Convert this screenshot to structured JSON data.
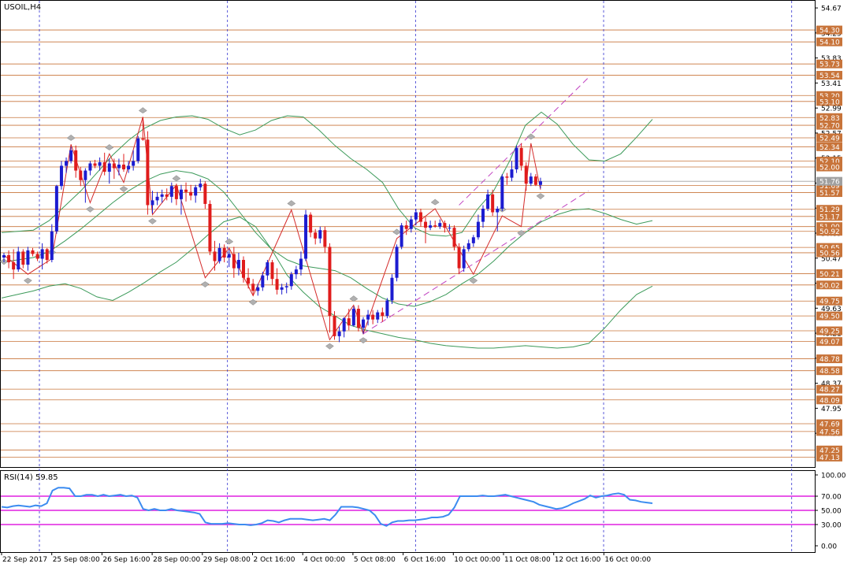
{
  "window": {
    "symbol_label": "USOIL,H4",
    "indicator_label": "RSI(14) 59.85"
  },
  "colors": {
    "bull": "#1c1cd0",
    "bear": "#e01c1c",
    "level_line": "#c8743a",
    "level_tag": "#c8743a",
    "bollinger": "#3c9a5a",
    "zigzag": "#d42a2a",
    "channel": "#c040c0",
    "rsi_line": "#3c8cf0",
    "rsi_level": "#e020e0",
    "period_sep": "#3030d0",
    "axis": "#000000"
  },
  "chart_data": [
    {
      "type": "candlestick",
      "title": "USOIL,H4",
      "ylim": [
        46.95,
        54.79
      ],
      "x_tick_labels": [
        "22 Sep 2017",
        "25 Sep 08:00",
        "26 Sep 16:00",
        "28 Sep 00:00",
        "29 Sep 08:00",
        "2 Oct 16:00",
        "4 Oct 00:00",
        "5 Oct 08:00",
        "6 Oct 16:00",
        "10 Oct 00:00",
        "11 Oct 08:00",
        "12 Oct 16:00",
        "16 Oct 00:00"
      ],
      "y_tick_labels": [
        "54.67",
        "54.25",
        "53.83",
        "53.41",
        "52.99",
        "52.57",
        "52.15",
        "51.73",
        "51.31",
        "50.89",
        "50.47",
        "50.05",
        "49.63",
        "49.21",
        "48.79",
        "48.37",
        "47.95",
        "47.53"
      ],
      "price_level_tags": [
        "54.30",
        "54.10",
        "53.73",
        "53.54",
        "53.20",
        "53.10",
        "52.83",
        "52.70",
        "52.49",
        "52.34",
        "52.10",
        "52.00",
        "51.69",
        "51.57",
        "51.29",
        "51.17",
        "51.00",
        "50.92",
        "50.65",
        "50.56",
        "50.21",
        "50.02",
        "49.75",
        "49.50",
        "49.25",
        "49.07",
        "48.78",
        "48.58",
        "48.27",
        "48.09",
        "47.69",
        "47.56",
        "47.25",
        "47.13"
      ],
      "current_price": "51.76",
      "candles": [
        [
          50.48,
          50.56,
          50.4,
          50.52
        ],
        [
          50.52,
          50.6,
          50.3,
          50.4
        ],
        [
          50.4,
          50.62,
          50.12,
          50.28
        ],
        [
          50.28,
          50.66,
          50.24,
          50.58
        ],
        [
          50.58,
          50.62,
          50.3,
          50.36
        ],
        [
          50.36,
          50.66,
          50.26,
          50.6
        ],
        [
          50.6,
          50.64,
          50.5,
          50.54
        ],
        [
          50.54,
          50.58,
          50.42,
          50.46
        ],
        [
          50.46,
          50.72,
          50.28,
          50.62
        ],
        [
          50.62,
          50.64,
          50.38,
          50.44
        ],
        [
          50.44,
          51.04,
          50.4,
          50.92
        ],
        [
          50.92,
          51.7,
          50.88,
          51.68
        ],
        [
          51.68,
          52.1,
          51.62,
          52.02
        ],
        [
          52.02,
          52.16,
          51.9,
          52.1
        ],
        [
          52.1,
          52.34,
          52.06,
          52.28
        ],
        [
          52.28,
          52.36,
          51.82,
          51.94
        ],
        [
          51.94,
          52.0,
          51.68,
          51.78
        ],
        [
          51.78,
          51.98,
          51.4,
          51.94
        ],
        [
          51.94,
          52.1,
          51.86,
          52.06
        ],
        [
          52.06,
          52.12,
          51.98,
          52.02
        ],
        [
          52.02,
          52.16,
          51.94,
          52.08
        ],
        [
          52.08,
          52.24,
          51.86,
          51.92
        ],
        [
          51.92,
          52.14,
          51.72,
          52.06
        ],
        [
          52.06,
          52.14,
          51.8,
          51.98
        ],
        [
          51.98,
          52.14,
          51.86,
          52.04
        ],
        [
          52.04,
          52.22,
          51.92,
          51.96
        ],
        [
          51.96,
          52.1,
          51.9,
          52.02
        ],
        [
          52.02,
          52.28,
          51.94,
          52.1
        ],
        [
          52.1,
          52.52,
          52.06,
          52.48
        ],
        [
          52.48,
          52.84,
          52.44,
          52.46
        ],
        [
          52.46,
          52.6,
          51.2,
          51.36
        ],
        [
          51.36,
          51.6,
          51.22,
          51.44
        ],
        [
          51.44,
          51.58,
          51.36,
          51.5
        ],
        [
          51.5,
          51.62,
          51.4,
          51.54
        ],
        [
          51.54,
          51.64,
          51.44,
          51.5
        ],
        [
          51.5,
          51.74,
          51.4,
          51.68
        ],
        [
          51.68,
          51.72,
          51.36,
          51.46
        ],
        [
          51.46,
          51.7,
          51.2,
          51.62
        ],
        [
          51.62,
          51.74,
          51.42,
          51.58
        ],
        [
          51.58,
          51.7,
          51.44,
          51.52
        ],
        [
          51.52,
          51.7,
          51.4,
          51.66
        ],
        [
          51.66,
          51.8,
          51.6,
          51.72
        ],
        [
          51.72,
          51.76,
          51.3,
          51.38
        ],
        [
          51.38,
          51.44,
          50.52,
          50.58
        ],
        [
          50.58,
          50.76,
          50.26,
          50.42
        ],
        [
          50.42,
          50.72,
          50.38,
          50.64
        ],
        [
          50.64,
          50.7,
          50.4,
          50.48
        ],
        [
          50.48,
          50.62,
          50.32,
          50.54
        ],
        [
          50.54,
          50.66,
          50.14,
          50.3
        ],
        [
          50.3,
          50.56,
          50.18,
          50.44
        ],
        [
          50.44,
          50.5,
          50.06,
          50.14
        ],
        [
          50.14,
          50.3,
          49.96,
          50.04
        ],
        [
          50.04,
          50.12,
          49.84,
          49.92
        ],
        [
          49.92,
          50.04,
          49.84,
          49.98
        ],
        [
          49.98,
          50.24,
          49.92,
          50.18
        ],
        [
          50.18,
          50.44,
          50.1,
          50.4
        ],
        [
          50.4,
          50.44,
          50.02,
          50.12
        ],
        [
          50.12,
          50.3,
          49.86,
          49.94
        ],
        [
          49.94,
          50.04,
          49.86,
          49.98
        ],
        [
          49.98,
          50.06,
          49.88,
          50.0
        ],
        [
          50.0,
          50.24,
          49.94,
          50.2
        ],
        [
          50.2,
          50.34,
          50.12,
          50.28
        ],
        [
          50.28,
          50.58,
          50.18,
          50.46
        ],
        [
          50.46,
          51.28,
          50.42,
          51.2
        ],
        [
          51.2,
          51.24,
          50.82,
          50.9
        ],
        [
          50.9,
          50.96,
          50.7,
          50.8
        ],
        [
          50.8,
          51.0,
          50.72,
          50.94
        ],
        [
          50.94,
          51.0,
          50.56,
          50.66
        ],
        [
          50.66,
          50.72,
          49.22,
          49.5
        ],
        [
          49.5,
          49.58,
          49.1,
          49.16
        ],
        [
          49.16,
          49.32,
          49.06,
          49.24
        ],
        [
          49.24,
          49.48,
          49.14,
          49.46
        ],
        [
          49.46,
          49.62,
          49.26,
          49.34
        ],
        [
          49.34,
          49.66,
          49.32,
          49.62
        ],
        [
          49.62,
          49.68,
          49.24,
          49.3
        ],
        [
          49.3,
          49.48,
          49.2,
          49.44
        ],
        [
          49.44,
          49.6,
          49.34,
          49.52
        ],
        [
          49.52,
          49.6,
          49.36,
          49.44
        ],
        [
          49.44,
          49.6,
          49.38,
          49.56
        ],
        [
          49.56,
          49.64,
          49.4,
          49.5
        ],
        [
          49.5,
          49.8,
          49.46,
          49.76
        ],
        [
          49.76,
          50.2,
          49.7,
          50.14
        ],
        [
          50.14,
          50.7,
          50.08,
          50.66
        ],
        [
          50.66,
          51.06,
          50.62,
          51.02
        ],
        [
          51.02,
          51.1,
          50.86,
          50.96
        ],
        [
          50.96,
          51.18,
          50.9,
          51.12
        ],
        [
          51.12,
          51.3,
          51.02,
          51.24
        ],
        [
          51.24,
          51.3,
          51.0,
          51.08
        ],
        [
          51.08,
          51.16,
          50.72,
          50.98
        ],
        [
          50.98,
          51.1,
          50.94,
          51.02
        ],
        [
          51.02,
          51.1,
          50.98,
          51.0
        ],
        [
          51.0,
          51.12,
          50.96,
          51.06
        ],
        [
          51.06,
          51.1,
          50.9,
          50.98
        ],
        [
          50.98,
          51.04,
          50.92,
          50.98
        ],
        [
          50.98,
          51.02,
          50.6,
          50.66
        ],
        [
          50.66,
          50.72,
          50.2,
          50.3
        ],
        [
          50.3,
          50.68,
          50.24,
          50.62
        ],
        [
          50.62,
          50.78,
          50.58,
          50.72
        ],
        [
          50.72,
          50.86,
          50.66,
          50.82
        ],
        [
          50.82,
          51.2,
          50.78,
          51.08
        ],
        [
          51.08,
          51.36,
          50.98,
          51.3
        ],
        [
          51.3,
          51.62,
          51.26,
          51.54
        ],
        [
          51.54,
          51.62,
          51.18,
          51.24
        ],
        [
          51.24,
          51.34,
          50.92,
          51.3
        ],
        [
          51.3,
          51.88,
          51.26,
          51.84
        ],
        [
          51.84,
          51.9,
          51.7,
          51.82
        ],
        [
          51.82,
          52.1,
          51.76,
          51.96
        ],
        [
          51.96,
          52.36,
          51.9,
          52.32
        ],
        [
          52.32,
          52.4,
          51.94,
          52.02
        ],
        [
          52.02,
          52.08,
          51.6,
          51.72
        ],
        [
          51.72,
          51.9,
          51.68,
          51.84
        ],
        [
          51.84,
          51.88,
          51.68,
          51.7
        ],
        [
          51.7,
          51.82,
          51.64,
          51.76
        ]
      ],
      "bollinger_upper": [
        50.9,
        50.92,
        50.94,
        51.1,
        51.35,
        51.6,
        51.9,
        52.2,
        52.45,
        52.65,
        52.78,
        52.84,
        52.86,
        52.8,
        52.65,
        52.54,
        52.62,
        52.78,
        52.86,
        52.84,
        52.62,
        52.36,
        52.14,
        51.96,
        51.74,
        51.3,
        50.98,
        50.86,
        50.84,
        50.9,
        51.3,
        51.6,
        52.1,
        52.7,
        52.92,
        52.72,
        52.38,
        52.12,
        52.1,
        52.22,
        52.5,
        52.8
      ],
      "bollinger_middle": [
        50.4,
        50.44,
        50.48,
        50.58,
        50.76,
        50.96,
        51.18,
        51.4,
        51.6,
        51.76,
        51.88,
        51.94,
        51.9,
        51.8,
        51.58,
        51.24,
        50.9,
        50.62,
        50.44,
        50.34,
        50.3,
        50.26,
        50.14,
        49.96,
        49.8,
        49.7,
        49.66,
        49.74,
        49.86,
        50.04,
        50.2,
        50.42,
        50.68,
        50.9,
        51.08,
        51.2,
        51.28,
        51.3,
        51.22,
        51.12,
        51.04,
        51.1
      ],
      "bollinger_lower": [
        49.8,
        49.86,
        49.92,
        50.0,
        50.04,
        49.96,
        49.82,
        49.76,
        49.9,
        50.06,
        50.24,
        50.4,
        50.62,
        50.86,
        51.08,
        51.16,
        51.0,
        50.62,
        50.18,
        49.9,
        49.66,
        49.5,
        49.34,
        49.26,
        49.2,
        49.14,
        49.1,
        49.04,
        49.0,
        48.98,
        48.96,
        48.96,
        48.98,
        49.0,
        48.98,
        48.96,
        48.98,
        49.04,
        49.3,
        49.6,
        49.86,
        50.0
      ],
      "zigzag_points": [
        [
          0,
          50.52
        ],
        [
          5,
          50.2
        ],
        [
          10,
          50.46
        ],
        [
          14,
          52.38
        ],
        [
          18,
          51.4
        ],
        [
          22,
          52.22
        ],
        [
          25,
          51.74
        ],
        [
          29,
          52.84
        ],
        [
          31,
          51.2
        ],
        [
          36,
          51.7
        ],
        [
          42,
          50.14
        ],
        [
          47,
          50.64
        ],
        [
          52,
          49.84
        ],
        [
          60,
          51.28
        ],
        [
          68,
          49.1
        ],
        [
          73,
          49.68
        ],
        [
          75,
          49.2
        ],
        [
          82,
          50.8
        ],
        [
          90,
          51.3
        ],
        [
          98,
          50.2
        ],
        [
          104,
          51.18
        ],
        [
          108,
          51.0
        ],
        [
          110,
          52.4
        ],
        [
          112,
          51.62
        ]
      ],
      "channel_lines": [
        [
          [
            75,
            49.2
          ],
          [
            122,
            51.6
          ]
        ],
        [
          [
            95,
            51.36
          ],
          [
            122,
            53.5
          ]
        ]
      ]
    },
    {
      "type": "line",
      "title": "RSI(14) 59.85",
      "ylim": [
        0,
        100
      ],
      "y_tick_labels": [
        "100.00",
        "70.00",
        "50.00",
        "30.00",
        "0.00"
      ],
      "levels": [
        70,
        50,
        30
      ],
      "values": [
        55,
        54,
        56,
        57,
        56,
        55,
        57,
        56,
        60,
        78,
        82,
        82,
        81,
        70,
        70,
        72,
        72,
        70,
        72,
        70,
        71,
        72,
        70,
        71,
        68,
        52,
        50,
        52,
        50,
        50,
        52,
        50,
        49,
        48,
        47,
        45,
        33,
        31,
        31,
        31,
        32,
        31,
        30,
        30,
        29,
        30,
        32,
        36,
        35,
        33,
        36,
        38,
        38,
        38,
        37,
        36,
        37,
        38,
        36,
        44,
        55,
        55,
        55,
        54,
        52,
        50,
        43,
        31,
        28,
        33,
        35,
        35,
        36,
        36,
        37,
        38,
        40,
        40,
        41,
        44,
        54,
        70,
        70,
        70,
        70,
        71,
        70,
        70,
        71,
        72,
        70,
        68,
        66,
        64,
        62,
        58,
        56,
        54,
        52,
        53,
        56,
        60,
        63,
        66,
        71,
        68,
        70,
        71,
        73,
        74,
        72,
        65,
        64,
        62,
        61,
        60
      ]
    }
  ]
}
